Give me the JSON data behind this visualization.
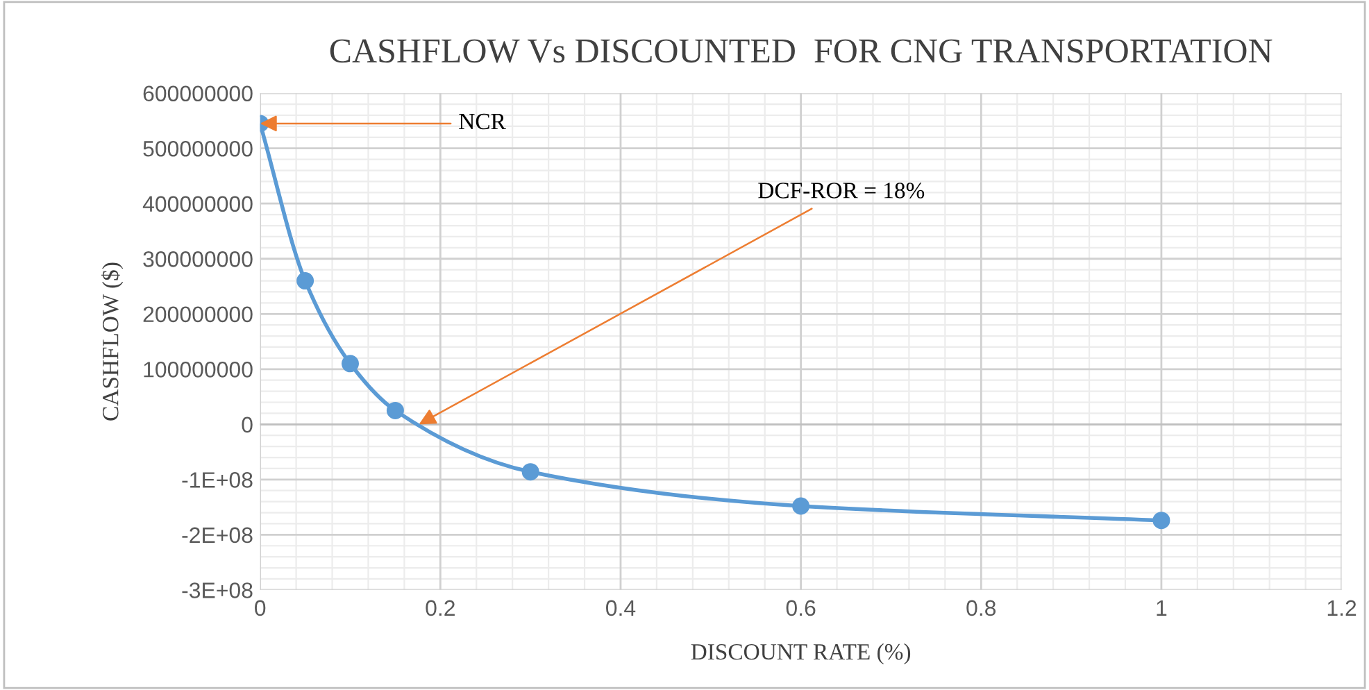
{
  "chart_data": {
    "type": "line",
    "title": "CASHFLOW Vs DISCOUNTED  FOR CNG TRANSPORTATION",
    "xlabel": "DISCOUNT RATE (%)",
    "ylabel": "CASHFLOW ($)",
    "x": [
      0,
      0.05,
      0.1,
      0.15,
      0.3,
      0.6,
      1
    ],
    "series": [
      {
        "color": "#5b9bd5",
        "values": [
          545000000,
          260000000,
          110000000,
          25000000,
          -86000000,
          -148000000,
          -174000000
        ]
      }
    ],
    "line_style": "solid",
    "marker": "circle",
    "grid": true,
    "xlim": [
      0,
      1.2
    ],
    "xticks": [
      0,
      0.2,
      0.4,
      0.6,
      0.8,
      1,
      1.2
    ],
    "ylim": [
      -300000000,
      600000000
    ],
    "yticks": [
      {
        "value": -300000000,
        "label": "-3E+08"
      },
      {
        "value": -200000000,
        "label": "-2E+08"
      },
      {
        "value": -100000000,
        "label": "-1E+08"
      },
      0,
      100000000,
      200000000,
      300000000,
      400000000,
      500000000,
      600000000
    ],
    "annotations": [
      {
        "text": "NCR",
        "x": 0,
        "y": 545000000
      },
      "DCF-ROR = 18%"
    ]
  }
}
